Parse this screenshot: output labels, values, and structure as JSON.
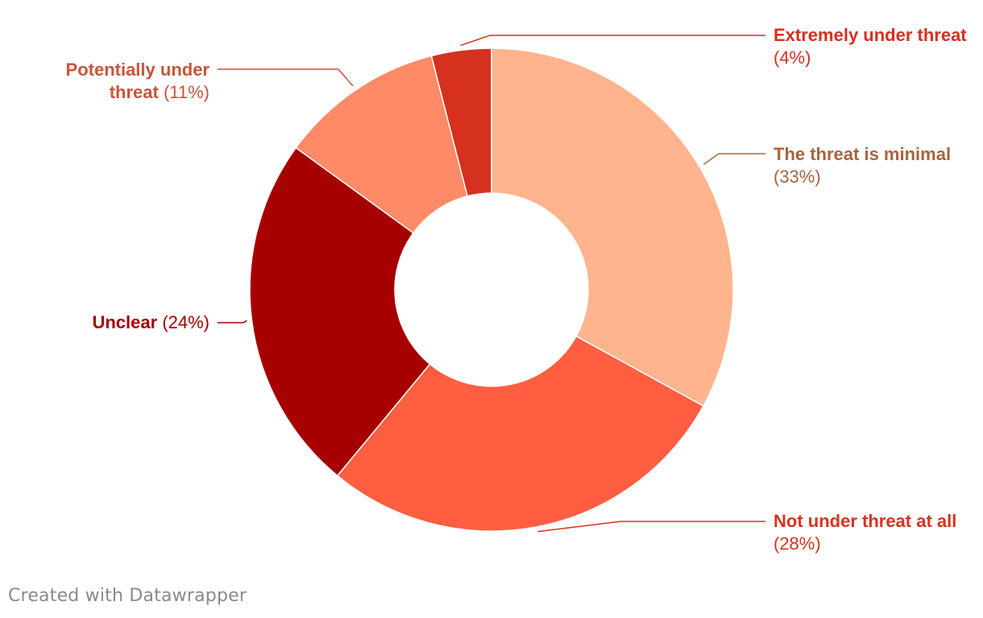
{
  "chart_data": {
    "type": "pie",
    "variant": "donut",
    "slices": [
      {
        "label": "The threat is minimal",
        "value": 33,
        "pct_text": "(33%)",
        "color": "#ffb48e",
        "label_color": "#a6653f"
      },
      {
        "label": "Not under threat at all",
        "value": 28,
        "pct_text": "(28%)",
        "color": "#ff5e40",
        "label_color": "#d8331c"
      },
      {
        "label": "Unclear",
        "value": 24,
        "pct_text": "(24%)",
        "color": "#a70000",
        "label_color": "#a70000"
      },
      {
        "label": "Potentially under threat",
        "value": 11,
        "pct_text": "(11%)",
        "color": "#ff8a67",
        "label_color": "#c8543a"
      },
      {
        "label": "Extremely under threat",
        "value": 4,
        "pct_text": "(4%)",
        "color": "#d6301e",
        "label_color": "#d6301e"
      }
    ]
  },
  "footer": {
    "credit": "Created with Datawrapper"
  }
}
